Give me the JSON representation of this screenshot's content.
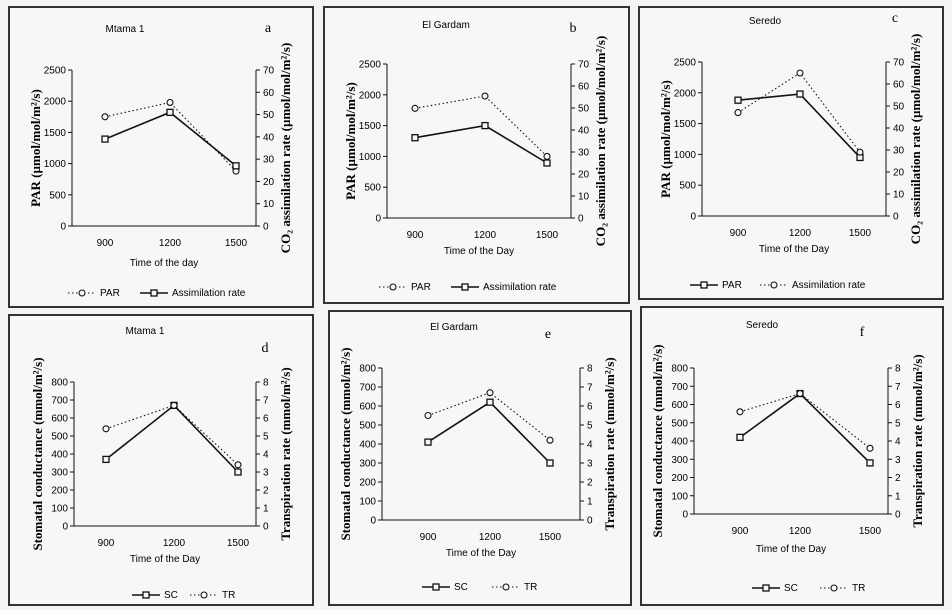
{
  "chart_data": [
    {
      "id": "a",
      "type": "line",
      "title": "Mtama 1",
      "panel_label": "a",
      "categories": [
        "900",
        "1200",
        "1500"
      ],
      "xlabel": "Time of the day",
      "ylabel_left": "PAR (µmol/mol/m²/s)",
      "ylabel_right": "CO₂ assimilation rate (µmol/mol/m²/s)",
      "yleft_range": [
        0,
        2500
      ],
      "yleft_ticks": [
        "0",
        "500",
        "1000",
        "1500",
        "2000",
        "2500"
      ],
      "yright_range": [
        0,
        70
      ],
      "yright_ticks": [
        "0",
        "10",
        "20",
        "30",
        "40",
        "50",
        "60",
        "70"
      ],
      "series": [
        {
          "name": "PAR",
          "axis": "left",
          "style": "dotted",
          "values": [
            1750,
            1980,
            880
          ]
        },
        {
          "name": "Assimilation rate",
          "axis": "right",
          "style": "solid",
          "values": [
            39,
            51,
            27
          ]
        }
      ],
      "legend": [
        {
          "style": "dotted",
          "label": "PAR"
        },
        {
          "style": "solid",
          "label": "Assimilation rate"
        }
      ]
    },
    {
      "id": "b",
      "type": "line",
      "title": "El Gardam",
      "panel_label": "b",
      "categories": [
        "900",
        "1200",
        "1500"
      ],
      "xlabel": "Time of the Day",
      "ylabel_left": "PAR (µmol/mol/m²/s)",
      "ylabel_right": "CO₂ assimilation rate (µmol/mol/m²/s)",
      "yleft_range": [
        0,
        2500
      ],
      "yleft_ticks": [
        "0",
        "500",
        "1000",
        "1500",
        "2000",
        "2500"
      ],
      "yright_range": [
        0,
        70
      ],
      "yright_ticks": [
        "0",
        "10",
        "20",
        "30",
        "40",
        "50",
        "60",
        "70"
      ],
      "series": [
        {
          "name": "PAR",
          "axis": "left",
          "style": "dotted",
          "values": [
            1780,
            1980,
            1000
          ]
        },
        {
          "name": "Assimilation rate",
          "axis": "right",
          "style": "solid",
          "values": [
            36.5,
            42,
            25
          ]
        }
      ],
      "legend": [
        {
          "style": "dotted",
          "label": "PAR"
        },
        {
          "style": "solid",
          "label": "Assimilation rate"
        }
      ]
    },
    {
      "id": "c",
      "type": "line",
      "title": "Seredo",
      "panel_label": "c",
      "categories": [
        "900",
        "1200",
        "1500"
      ],
      "xlabel": "Time of the Day",
      "ylabel_left": "PAR (µmol/mol/m²/s)",
      "ylabel_right": "CO₂ assimilation rate (µmol/mol/m²/s)",
      "yleft_range": [
        0,
        2500
      ],
      "yleft_ticks": [
        "0",
        "500",
        "1000",
        "1500",
        "2000",
        "2500"
      ],
      "yright_range": [
        0,
        70
      ],
      "yright_ticks": [
        "0",
        "10",
        "20",
        "30",
        "40",
        "50",
        "60",
        "70"
      ],
      "series": [
        {
          "name": "PAR",
          "axis": "left",
          "style": "solid",
          "values": [
            1880,
            1980,
            950
          ]
        },
        {
          "name": "Assimilation rate",
          "axis": "right",
          "style": "dotted",
          "values": [
            47,
            65,
            29
          ]
        }
      ],
      "legend": [
        {
          "style": "solid",
          "label": "PAR"
        },
        {
          "style": "dotted",
          "label": "Assimilation rate"
        }
      ]
    },
    {
      "id": "d",
      "type": "line",
      "title": "Mtama 1",
      "panel_label": "d",
      "categories": [
        "900",
        "1200",
        "1500"
      ],
      "xlabel": "Time of the Day",
      "ylabel_left": "Stomatal conductance (mmol/m²/s)",
      "ylabel_right": "Transpiration rate (mmol/m²/s)",
      "yleft_range": [
        0,
        800
      ],
      "yleft_ticks": [
        "0",
        "100",
        "200",
        "300",
        "400",
        "500",
        "600",
        "700",
        "800"
      ],
      "yright_range": [
        0,
        8
      ],
      "yright_ticks": [
        "0",
        "1",
        "2",
        "3",
        "4",
        "5",
        "6",
        "7",
        "8"
      ],
      "series": [
        {
          "name": "SC",
          "axis": "left",
          "style": "solid",
          "values": [
            370,
            670,
            300
          ]
        },
        {
          "name": "TR",
          "axis": "right",
          "style": "dotted",
          "values": [
            5.4,
            6.7,
            3.4
          ]
        }
      ],
      "legend": [
        {
          "style": "solid",
          "label": "SC"
        },
        {
          "style": "dotted",
          "label": "TR"
        }
      ]
    },
    {
      "id": "e",
      "type": "line",
      "title": "El Gardam",
      "panel_label": "e",
      "categories": [
        "900",
        "1200",
        "1500"
      ],
      "xlabel": "Time of the Day",
      "ylabel_left": "Stomatal conductance (mmol/m²/s)",
      "ylabel_right": "Transpiration rate (mmol/m²/s)",
      "yleft_range": [
        0,
        800
      ],
      "yleft_ticks": [
        "0",
        "100",
        "200",
        "300",
        "400",
        "500",
        "600",
        "700",
        "800"
      ],
      "yright_range": [
        0,
        8
      ],
      "yright_ticks": [
        "0",
        "1",
        "2",
        "3",
        "4",
        "5",
        "6",
        "7",
        "8"
      ],
      "series": [
        {
          "name": "SC",
          "axis": "left",
          "style": "solid",
          "values": [
            410,
            620,
            300
          ]
        },
        {
          "name": "TR",
          "axis": "right",
          "style": "dotted",
          "values": [
            5.5,
            6.7,
            4.2
          ]
        }
      ],
      "legend": [
        {
          "style": "solid",
          "label": "SC"
        },
        {
          "style": "dotted",
          "label": "TR"
        }
      ]
    },
    {
      "id": "f",
      "type": "line",
      "title": "Seredo",
      "panel_label": "f",
      "categories": [
        "900",
        "1200",
        "1500"
      ],
      "xlabel": "Time of the Day",
      "ylabel_left": "Stomatal conductance (mmol/m²/s)",
      "ylabel_right": "Transpiration rate (mmol/m²/s)",
      "yleft_range": [
        0,
        800
      ],
      "yleft_ticks": [
        "0",
        "100",
        "200",
        "300",
        "400",
        "500",
        "600",
        "700",
        "800"
      ],
      "yright_range": [
        0,
        8
      ],
      "yright_ticks": [
        "0",
        "1",
        "2",
        "3",
        "4",
        "5",
        "6",
        "7",
        "8"
      ],
      "series": [
        {
          "name": "SC",
          "axis": "left",
          "style": "solid",
          "values": [
            420,
            660,
            280
          ]
        },
        {
          "name": "TR",
          "axis": "right",
          "style": "dotted",
          "values": [
            5.6,
            6.6,
            3.6
          ]
        }
      ],
      "legend": [
        {
          "style": "solid",
          "label": "SC"
        },
        {
          "style": "dotted",
          "label": "TR"
        }
      ]
    }
  ]
}
